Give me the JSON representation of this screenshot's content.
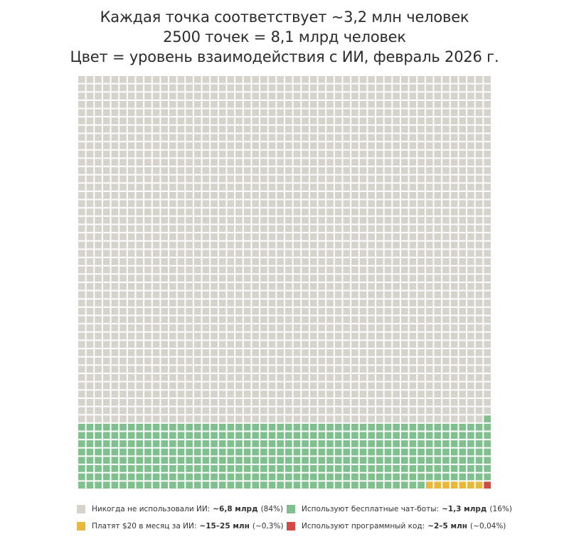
{
  "title_lines": [
    "Каждая точка соответствует ~3,2 млн человек",
    "2500 точек = 8,1 млрд человек",
    "Цвет = уровень взаимодействия с ИИ, февраль 2026 г."
  ],
  "chart_data": {
    "type": "waffle",
    "grid": {
      "columns": 50,
      "rows": 50,
      "total_dots": 2500
    },
    "categories": [
      {
        "key": "never",
        "label": "Никогда не использовали ИИ:",
        "value": "~6,8 млрд",
        "share": "(84%)",
        "dots": 2099,
        "color": "#d6d2cc"
      },
      {
        "key": "free",
        "label": "Используют бесплатные чат-боты:",
        "value": "~1,3 млрд",
        "share": "(16%)",
        "dots": 393,
        "color": "#80c08f"
      },
      {
        "key": "paid",
        "label": "Платят $20 в месяц за ИИ:",
        "value": "~15–25 млн",
        "share": "(~0,3%)",
        "dots": 7,
        "color": "#e9b83a"
      },
      {
        "key": "code",
        "label": "Используют программный код:",
        "value": "~2–5 млн",
        "share": "(~0,04%)",
        "dots": 1,
        "color": "#d24a43"
      }
    ]
  }
}
